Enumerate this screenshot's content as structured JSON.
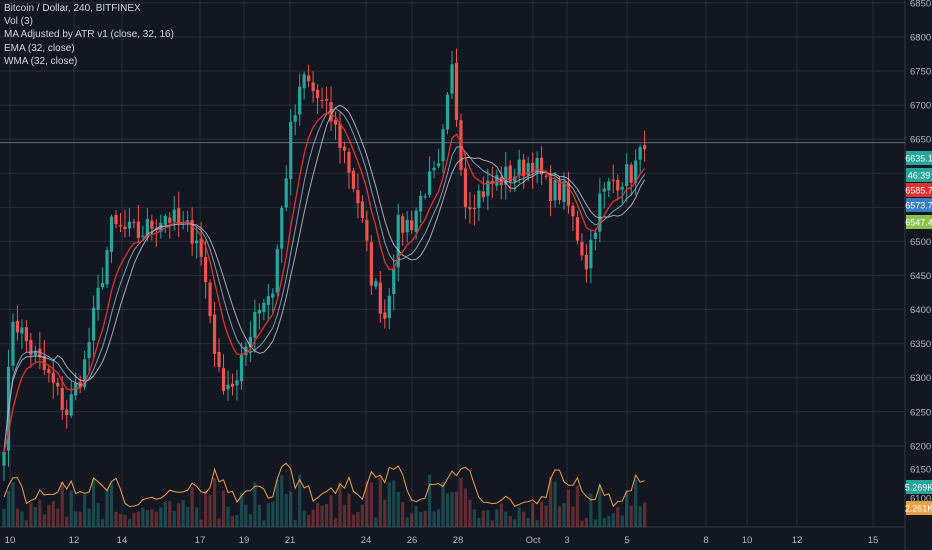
{
  "legend": {
    "title": "Bitcoin / Dollar, 240, BITFINEX",
    "ind1": "Vol (3)",
    "ind2": "MA Adjusted by ATR v1 (close, 32, 16)",
    "ind3": "EMA (32, close)",
    "ind4": "WMA (32, close)"
  },
  "colors": {
    "background": "#131722",
    "grid": "#2a2e39",
    "up": "#26a69a",
    "down": "#ef5350",
    "ema": "#e03030",
    "wma": "#8fb0c8",
    "adjusted": "#c9cdd6",
    "volume_ma": "#f0a040"
  },
  "chart_data": {
    "type": "candlestick",
    "price_axis": {
      "ylim": [
        6166,
        6866
      ],
      "ticks": [
        6200,
        6250,
        6300,
        6350,
        6400,
        6450,
        6500,
        6550,
        6600,
        6650,
        6700,
        6750,
        6800,
        6850
      ],
      "tick_labels": [
        "6200.0",
        "6250.0",
        "6300.0",
        "6350.0",
        "6400.0",
        "6450.0",
        "6500.0",
        "6550.0",
        "6600.0",
        "6650.0",
        "6700.0",
        "6750.0",
        "6800.0",
        "6850.0"
      ]
    },
    "time_axis": {
      "labels": [
        "10",
        "12",
        "14",
        "17",
        "19",
        "21",
        "24",
        "26",
        "28",
        "Oct",
        "3",
        "5",
        "8",
        "10",
        "12",
        "15"
      ]
    },
    "volume_panel": {
      "labels": [
        "6150.0",
        "6100.0"
      ]
    },
    "price_tags": [
      {
        "text": "6635.1",
        "value": 6635.1,
        "color": "#26a69a"
      },
      {
        "text": "46:39",
        "value": 6617,
        "color": "#26a69a"
      },
      {
        "text": "6585.7",
        "value": 6585.7,
        "color": "#e03030"
      },
      {
        "text": "6573.7",
        "value": 6573.7,
        "color": "#3a7ec2"
      },
      {
        "text": "6547.4",
        "value": 6547.4,
        "color": "#8bc34a"
      }
    ],
    "volume_tags": [
      {
        "text": "5.269K",
        "color": "#26a69a"
      },
      {
        "text": "2.261K",
        "color": "#f0a040"
      }
    ],
    "horizontal_line": 6645,
    "anchors": [
      {
        "i": 0,
        "p": 6210
      },
      {
        "i": 2,
        "p": 6390
      },
      {
        "i": 6,
        "p": 6340
      },
      {
        "i": 10,
        "p": 6300
      },
      {
        "i": 14,
        "p": 6250
      },
      {
        "i": 18,
        "p": 6320
      },
      {
        "i": 24,
        "p": 6520
      },
      {
        "i": 30,
        "p": 6510
      },
      {
        "i": 36,
        "p": 6540
      },
      {
        "i": 40,
        "p": 6520
      },
      {
        "i": 43,
        "p": 6510
      },
      {
        "i": 45,
        "p": 6440
      },
      {
        "i": 48,
        "p": 6300
      },
      {
        "i": 52,
        "p": 6290
      },
      {
        "i": 56,
        "p": 6400
      },
      {
        "i": 60,
        "p": 6430
      },
      {
        "i": 64,
        "p": 6660
      },
      {
        "i": 67,
        "p": 6740
      },
      {
        "i": 70,
        "p": 6710
      },
      {
        "i": 73,
        "p": 6680
      },
      {
        "i": 76,
        "p": 6630
      },
      {
        "i": 79,
        "p": 6560
      },
      {
        "i": 82,
        "p": 6450
      },
      {
        "i": 85,
        "p": 6390
      },
      {
        "i": 88,
        "p": 6520
      },
      {
        "i": 91,
        "p": 6530
      },
      {
        "i": 94,
        "p": 6580
      },
      {
        "i": 97,
        "p": 6600
      },
      {
        "i": 100,
        "p": 6750
      },
      {
        "i": 103,
        "p": 6560
      },
      {
        "i": 106,
        "p": 6570
      },
      {
        "i": 110,
        "p": 6590
      },
      {
        "i": 114,
        "p": 6600
      },
      {
        "i": 118,
        "p": 6620
      },
      {
        "i": 121,
        "p": 6580
      },
      {
        "i": 125,
        "p": 6570
      },
      {
        "i": 128,
        "p": 6510
      },
      {
        "i": 130,
        "p": 6470
      },
      {
        "i": 133,
        "p": 6560
      },
      {
        "i": 136,
        "p": 6590
      },
      {
        "i": 140,
        "p": 6600
      },
      {
        "i": 143,
        "p": 6635
      }
    ]
  }
}
